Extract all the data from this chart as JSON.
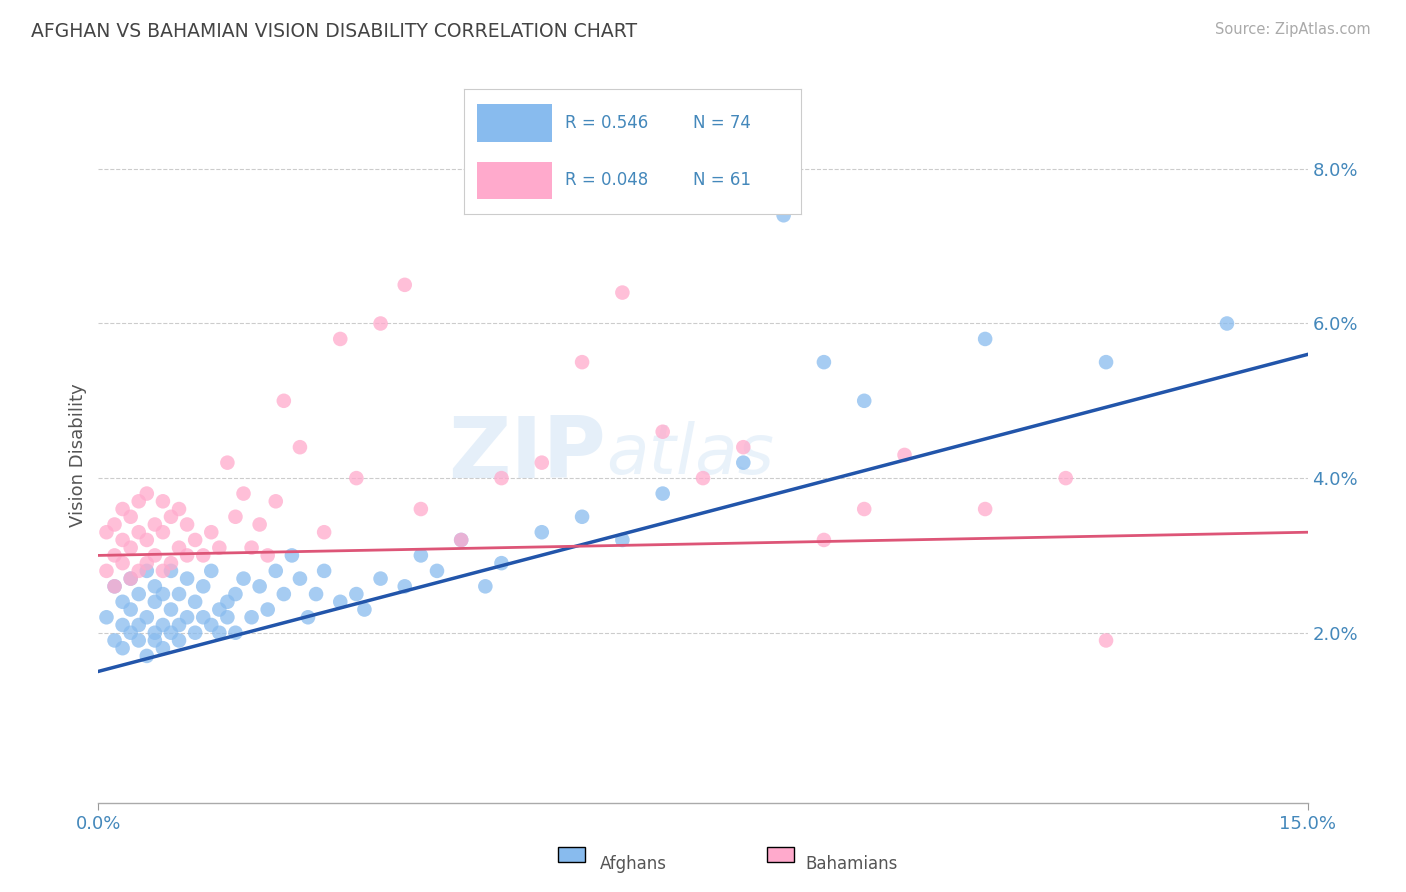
{
  "title": "AFGHAN VS BAHAMIAN VISION DISABILITY CORRELATION CHART",
  "source": "Source: ZipAtlas.com",
  "ylabel_label": "Vision Disability",
  "xlim": [
    0.0,
    0.15
  ],
  "ylim": [
    -0.002,
    0.088
  ],
  "yticks": [
    0.02,
    0.04,
    0.06,
    0.08
  ],
  "ytick_labels": [
    "2.0%",
    "4.0%",
    "6.0%",
    "8.0%"
  ],
  "xticks": [
    0.0,
    0.15
  ],
  "xtick_labels": [
    "0.0%",
    "15.0%"
  ],
  "blue_color": "#88BBEE",
  "pink_color": "#FFAACC",
  "blue_line_color": "#2255AA",
  "pink_line_color": "#DD5577",
  "r_blue": 0.546,
  "n_blue": 74,
  "r_pink": 0.048,
  "n_pink": 61,
  "legend_afghans": "Afghans",
  "legend_bahamians": "Bahamians",
  "watermark_zip": "ZIP",
  "watermark_atlas": "atlas",
  "title_color": "#444444",
  "axis_tick_color": "#4488BB",
  "blue_scatter_x": [
    0.001,
    0.002,
    0.002,
    0.003,
    0.003,
    0.003,
    0.004,
    0.004,
    0.004,
    0.005,
    0.005,
    0.005,
    0.006,
    0.006,
    0.006,
    0.007,
    0.007,
    0.007,
    0.007,
    0.008,
    0.008,
    0.008,
    0.009,
    0.009,
    0.009,
    0.01,
    0.01,
    0.01,
    0.011,
    0.011,
    0.012,
    0.012,
    0.013,
    0.013,
    0.014,
    0.014,
    0.015,
    0.015,
    0.016,
    0.016,
    0.017,
    0.017,
    0.018,
    0.019,
    0.02,
    0.021,
    0.022,
    0.023,
    0.024,
    0.025,
    0.026,
    0.027,
    0.028,
    0.03,
    0.032,
    0.033,
    0.035,
    0.038,
    0.04,
    0.042,
    0.045,
    0.048,
    0.05,
    0.055,
    0.06,
    0.065,
    0.07,
    0.08,
    0.085,
    0.09,
    0.095,
    0.11,
    0.125,
    0.14
  ],
  "blue_scatter_y": [
    0.022,
    0.019,
    0.026,
    0.021,
    0.018,
    0.024,
    0.02,
    0.023,
    0.027,
    0.021,
    0.019,
    0.025,
    0.022,
    0.017,
    0.028,
    0.02,
    0.024,
    0.019,
    0.026,
    0.021,
    0.018,
    0.025,
    0.02,
    0.023,
    0.028,
    0.021,
    0.025,
    0.019,
    0.022,
    0.027,
    0.02,
    0.024,
    0.022,
    0.026,
    0.021,
    0.028,
    0.023,
    0.02,
    0.024,
    0.022,
    0.025,
    0.02,
    0.027,
    0.022,
    0.026,
    0.023,
    0.028,
    0.025,
    0.03,
    0.027,
    0.022,
    0.025,
    0.028,
    0.024,
    0.025,
    0.023,
    0.027,
    0.026,
    0.03,
    0.028,
    0.032,
    0.026,
    0.029,
    0.033,
    0.035,
    0.032,
    0.038,
    0.042,
    0.074,
    0.055,
    0.05,
    0.058,
    0.055,
    0.06
  ],
  "pink_scatter_x": [
    0.001,
    0.001,
    0.002,
    0.002,
    0.002,
    0.003,
    0.003,
    0.003,
    0.004,
    0.004,
    0.004,
    0.005,
    0.005,
    0.005,
    0.006,
    0.006,
    0.006,
    0.007,
    0.007,
    0.008,
    0.008,
    0.008,
    0.009,
    0.009,
    0.01,
    0.01,
    0.011,
    0.011,
    0.012,
    0.013,
    0.014,
    0.015,
    0.016,
    0.017,
    0.018,
    0.019,
    0.02,
    0.021,
    0.022,
    0.023,
    0.025,
    0.028,
    0.03,
    0.032,
    0.035,
    0.038,
    0.04,
    0.045,
    0.05,
    0.055,
    0.06,
    0.065,
    0.07,
    0.075,
    0.08,
    0.09,
    0.095,
    0.1,
    0.11,
    0.12,
    0.125
  ],
  "pink_scatter_y": [
    0.028,
    0.033,
    0.03,
    0.026,
    0.034,
    0.029,
    0.032,
    0.036,
    0.027,
    0.031,
    0.035,
    0.028,
    0.033,
    0.037,
    0.029,
    0.032,
    0.038,
    0.03,
    0.034,
    0.028,
    0.033,
    0.037,
    0.029,
    0.035,
    0.031,
    0.036,
    0.03,
    0.034,
    0.032,
    0.03,
    0.033,
    0.031,
    0.042,
    0.035,
    0.038,
    0.031,
    0.034,
    0.03,
    0.037,
    0.05,
    0.044,
    0.033,
    0.058,
    0.04,
    0.06,
    0.065,
    0.036,
    0.032,
    0.04,
    0.042,
    0.055,
    0.064,
    0.046,
    0.04,
    0.044,
    0.032,
    0.036,
    0.043,
    0.036,
    0.04,
    0.019
  ]
}
